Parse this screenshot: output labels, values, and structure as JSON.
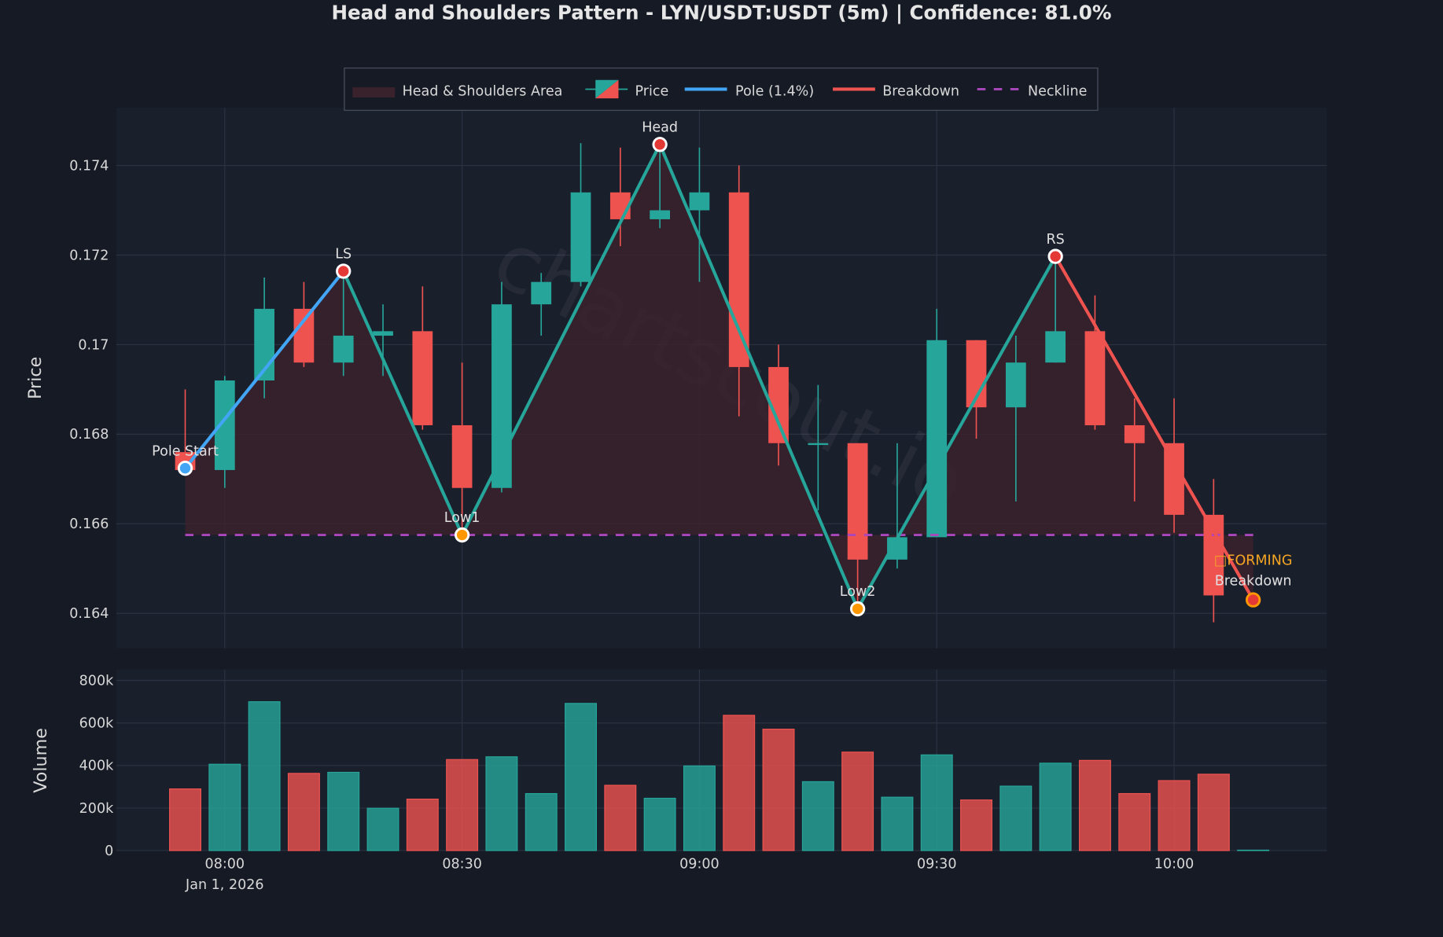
{
  "title": "Head and Shoulders Pattern - LYN/USDT:USDT (5m) | Confidence: 81.0%",
  "watermark": "chartscout.io",
  "colors": {
    "background": "#151a25",
    "plot_background": "#1a1f2c",
    "up": "#26a69a",
    "down": "#ef5350",
    "pole": "#42a5f5",
    "breakdown": "#ef5350",
    "neckline": "#ab47bc",
    "area": "#3a222d",
    "forming": "#f5a623",
    "trough_marker": "#ff9800"
  },
  "legend": {
    "items": [
      {
        "label": "Head & Shoulders Area",
        "icon": "area-swatch"
      },
      {
        "label": "Price",
        "icon": "candle-swatch"
      },
      {
        "label": "Pole (1.4%)",
        "icon": "blue-line"
      },
      {
        "label": "Breakdown",
        "icon": "red-line"
      },
      {
        "label": "Neckline",
        "icon": "purple-dashed-line"
      }
    ]
  },
  "chart_data": [
    {
      "type": "candlestick",
      "ylabel": "Price",
      "ylim": [
        0.1627,
        0.1759
      ],
      "yticks": [
        "0.164",
        "0.166",
        "0.168",
        "0.17",
        "0.172",
        "0.174"
      ],
      "ytick_values": [
        0.164,
        0.166,
        0.168,
        0.17,
        0.172,
        0.174
      ],
      "grid": true,
      "legend_position": "top-center",
      "candles": [
        {
          "t": "07:55",
          "o": 0.1676,
          "h": 0.169,
          "l": 0.1672,
          "c": 0.1672
        },
        {
          "t": "08:00",
          "o": 0.1672,
          "h": 0.1693,
          "l": 0.1668,
          "c": 0.1692
        },
        {
          "t": "08:05",
          "o": 0.1692,
          "h": 0.1715,
          "l": 0.1688,
          "c": 0.1708
        },
        {
          "t": "08:10",
          "o": 0.1708,
          "h": 0.1714,
          "l": 0.1695,
          "c": 0.1696
        },
        {
          "t": "08:15",
          "o": 0.1696,
          "h": 0.1716,
          "l": 0.1693,
          "c": 0.1702
        },
        {
          "t": "08:20",
          "o": 0.1702,
          "h": 0.1709,
          "l": 0.1693,
          "c": 0.1703
        },
        {
          "t": "08:25",
          "o": 0.1703,
          "h": 0.1713,
          "l": 0.1681,
          "c": 0.1682
        },
        {
          "t": "08:30",
          "o": 0.1682,
          "h": 0.1696,
          "l": 0.1658,
          "c": 0.1668
        },
        {
          "t": "08:35",
          "o": 0.1668,
          "h": 0.1714,
          "l": 0.1667,
          "c": 0.1709
        },
        {
          "t": "08:40",
          "o": 0.1709,
          "h": 0.1716,
          "l": 0.1702,
          "c": 0.1714
        },
        {
          "t": "08:45",
          "o": 0.1714,
          "h": 0.1745,
          "l": 0.1713,
          "c": 0.1734
        },
        {
          "t": "08:50",
          "o": 0.1734,
          "h": 0.1744,
          "l": 0.1722,
          "c": 0.1728
        },
        {
          "t": "08:55",
          "o": 0.1728,
          "h": 0.1745,
          "l": 0.1726,
          "c": 0.173
        },
        {
          "t": "09:00",
          "o": 0.173,
          "h": 0.1744,
          "l": 0.1714,
          "c": 0.1734
        },
        {
          "t": "09:05",
          "o": 0.1734,
          "h": 0.174,
          "l": 0.1684,
          "c": 0.1695
        },
        {
          "t": "09:10",
          "o": 0.1695,
          "h": 0.17,
          "l": 0.1673,
          "c": 0.1678
        },
        {
          "t": "09:15",
          "o": 0.1678,
          "h": 0.1691,
          "l": 0.1663,
          "c": 0.1678
        },
        {
          "t": "09:20",
          "o": 0.1678,
          "h": 0.1678,
          "l": 0.1641,
          "c": 0.1652
        },
        {
          "t": "09:25",
          "o": 0.1652,
          "h": 0.1678,
          "l": 0.165,
          "c": 0.1657
        },
        {
          "t": "09:30",
          "o": 0.1657,
          "h": 0.1708,
          "l": 0.1657,
          "c": 0.1701
        },
        {
          "t": "09:35",
          "o": 0.1701,
          "h": 0.1701,
          "l": 0.1679,
          "c": 0.1686
        },
        {
          "t": "09:40",
          "o": 0.1686,
          "h": 0.1702,
          "l": 0.1665,
          "c": 0.1696
        },
        {
          "t": "09:45",
          "o": 0.1696,
          "h": 0.172,
          "l": 0.1696,
          "c": 0.1703
        },
        {
          "t": "09:50",
          "o": 0.1703,
          "h": 0.1711,
          "l": 0.1681,
          "c": 0.1682
        },
        {
          "t": "09:55",
          "o": 0.1682,
          "h": 0.1688,
          "l": 0.1665,
          "c": 0.1678
        },
        {
          "t": "10:00",
          "o": 0.1678,
          "h": 0.1688,
          "l": 0.1658,
          "c": 0.1662
        },
        {
          "t": "10:05",
          "o": 0.1662,
          "h": 0.167,
          "l": 0.1638,
          "c": 0.1644
        }
      ],
      "pattern_points": [
        {
          "t": "07:55",
          "price": 0.16724,
          "label": "Pole Start",
          "kind": "pole"
        },
        {
          "t": "08:15",
          "price": 0.17164,
          "label": "LS",
          "kind": "peak"
        },
        {
          "t": "08:30",
          "price": 0.16575,
          "label": "Low1",
          "kind": "trough"
        },
        {
          "t": "08:55",
          "price": 0.17447,
          "label": "Head",
          "kind": "peak"
        },
        {
          "t": "09:20",
          "price": 0.1641,
          "label": "Low2",
          "kind": "trough"
        },
        {
          "t": "09:45",
          "price": 0.17197,
          "label": "RS",
          "kind": "peak"
        },
        {
          "t": "10:10",
          "price": 0.1643,
          "label": "Breakdown",
          "kind": "breakdown"
        }
      ],
      "neckline": {
        "price": 0.16575,
        "from": "07:55",
        "to": "10:10"
      },
      "status_label": "□FORMING"
    },
    {
      "type": "bar",
      "ylabel": "Volume",
      "ylim": [
        0,
        800000
      ],
      "yticks": [
        "0",
        "200k",
        "400k",
        "600k",
        "800k"
      ],
      "ytick_values": [
        0,
        200000,
        400000,
        600000,
        800000
      ],
      "xticks": [
        "08:00",
        "08:30",
        "09:00",
        "09:30",
        "10:00"
      ],
      "xtick_date": "Jan 1, 2026",
      "volumes": [
        290000,
        406000,
        700000,
        363000,
        368000,
        199000,
        242000,
        428000,
        441000,
        268000,
        692000,
        307000,
        246000,
        398000,
        636000,
        571000,
        324000,
        463000,
        251000,
        450000,
        238000,
        303000,
        411000,
        424000,
        268000,
        329000,
        359000,
        2000
      ],
      "times": [
        "07:55",
        "08:00",
        "08:05",
        "08:10",
        "08:15",
        "08:20",
        "08:25",
        "08:30",
        "08:35",
        "08:40",
        "08:45",
        "08:50",
        "08:55",
        "09:00",
        "09:05",
        "09:10",
        "09:15",
        "09:20",
        "09:25",
        "09:30",
        "09:35",
        "09:40",
        "09:45",
        "09:50",
        "09:55",
        "10:00",
        "10:05",
        "10:10"
      ]
    }
  ]
}
